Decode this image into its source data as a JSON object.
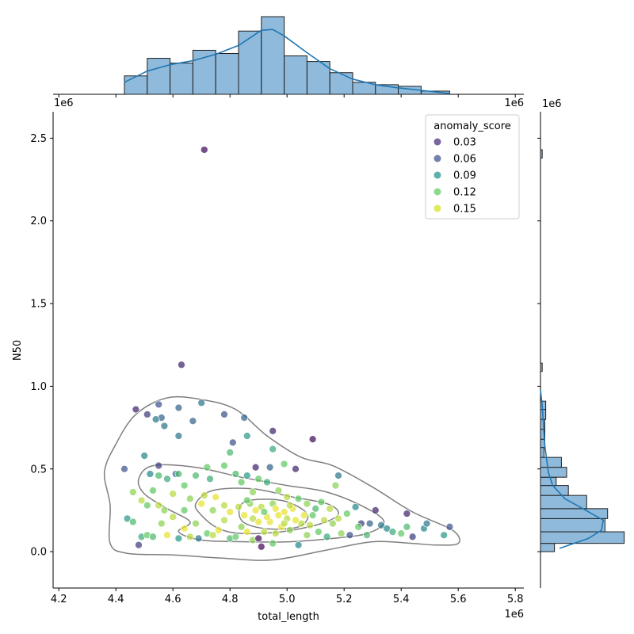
{
  "chart_data": {
    "type": "scatter",
    "xlabel": "total_length",
    "ylabel": "N50",
    "x_offset_label": "1e6",
    "y_offset_label": "1e6",
    "top_hist_left_label": "1e6",
    "top_hist_right_label": "1e6",
    "right_hist_top_label": "1e6",
    "xlim": [
      4.18,
      5.83
    ],
    "ylim": [
      -0.22,
      2.66
    ],
    "x_ticks": [
      4.2,
      4.4,
      4.6,
      4.8,
      5.0,
      5.2,
      5.4,
      5.6,
      5.8
    ],
    "x_tick_labels": [
      "4.2",
      "4.4",
      "4.6",
      "4.8",
      "5.0",
      "5.2",
      "5.4",
      "5.6",
      "5.8"
    ],
    "y_ticks": [
      0.0,
      0.5,
      1.0,
      1.5,
      2.0,
      2.5
    ],
    "y_tick_labels": [
      "0.0",
      "0.5",
      "1.0",
      "1.5",
      "2.0",
      "2.5"
    ],
    "grid": false,
    "legend": {
      "title": "anomaly_score",
      "placement": "top-right",
      "entries": [
        {
          "label": "0.03",
          "color": "#472d7b"
        },
        {
          "label": "0.06",
          "color": "#3b528b"
        },
        {
          "label": "0.09",
          "color": "#21918c"
        },
        {
          "label": "0.12",
          "color": "#5ec962"
        },
        {
          "label": "0.15",
          "color": "#d5e21a"
        }
      ]
    },
    "colors": {
      "hist_fill": "#8fbadb",
      "hist_edge": "#1f1f1f",
      "kde_line": "#1f77b4",
      "contour": "#7f7f7f"
    },
    "points": [
      [
        4.71,
        2.43,
        0.02
      ],
      [
        4.63,
        1.13,
        0.03
      ],
      [
        4.47,
        0.86,
        0.03
      ],
      [
        4.51,
        0.83,
        0.04
      ],
      [
        4.55,
        0.89,
        0.05
      ],
      [
        4.56,
        0.81,
        0.06
      ],
      [
        4.54,
        0.8,
        0.07
      ],
      [
        4.57,
        0.76,
        0.07
      ],
      [
        4.62,
        0.87,
        0.06
      ],
      [
        4.7,
        0.9,
        0.07
      ],
      [
        4.67,
        0.79,
        0.06
      ],
      [
        4.78,
        0.83,
        0.05
      ],
      [
        4.85,
        0.81,
        0.06
      ],
      [
        4.62,
        0.7,
        0.07
      ],
      [
        4.86,
        0.7,
        0.09
      ],
      [
        4.95,
        0.73,
        0.03
      ],
      [
        5.09,
        0.68,
        0.02
      ],
      [
        4.81,
        0.66,
        0.05
      ],
      [
        4.95,
        0.62,
        0.1
      ],
      [
        4.8,
        0.6,
        0.11
      ],
      [
        4.5,
        0.58,
        0.08
      ],
      [
        4.43,
        0.5,
        0.05
      ],
      [
        4.55,
        0.52,
        0.04
      ],
      [
        4.61,
        0.47,
        0.06
      ],
      [
        4.72,
        0.51,
        0.12
      ],
      [
        4.78,
        0.52,
        0.12
      ],
      [
        4.89,
        0.51,
        0.03
      ],
      [
        4.94,
        0.51,
        0.06
      ],
      [
        5.03,
        0.5,
        0.03
      ],
      [
        4.99,
        0.53,
        0.12
      ],
      [
        5.18,
        0.46,
        0.07
      ],
      [
        5.17,
        0.4,
        0.13
      ],
      [
        4.46,
        0.36,
        0.13
      ],
      [
        4.49,
        0.31,
        0.14
      ],
      [
        4.51,
        0.28,
        0.12
      ],
      [
        4.55,
        0.28,
        0.14
      ],
      [
        4.58,
        0.44,
        0.1
      ],
      [
        4.62,
        0.47,
        0.11
      ],
      [
        4.64,
        0.4,
        0.12
      ],
      [
        4.68,
        0.46,
        0.11
      ],
      [
        4.71,
        0.34,
        0.14
      ],
      [
        4.73,
        0.44,
        0.1
      ],
      [
        4.75,
        0.33,
        0.15
      ],
      [
        4.78,
        0.28,
        0.14
      ],
      [
        4.82,
        0.47,
        0.11
      ],
      [
        4.84,
        0.42,
        0.12
      ],
      [
        4.86,
        0.46,
        0.09
      ],
      [
        4.88,
        0.36,
        0.13
      ],
      [
        4.9,
        0.44,
        0.12
      ],
      [
        4.93,
        0.42,
        0.1
      ],
      [
        4.97,
        0.37,
        0.13
      ],
      [
        5.0,
        0.33,
        0.14
      ],
      [
        5.04,
        0.32,
        0.12
      ],
      [
        5.07,
        0.29,
        0.13
      ],
      [
        5.1,
        0.26,
        0.11
      ],
      [
        5.12,
        0.3,
        0.12
      ],
      [
        5.15,
        0.26,
        0.14
      ],
      [
        5.18,
        0.2,
        0.14
      ],
      [
        5.21,
        0.23,
        0.12
      ],
      [
        5.24,
        0.27,
        0.08
      ],
      [
        5.26,
        0.17,
        0.04
      ],
      [
        5.29,
        0.17,
        0.06
      ],
      [
        5.31,
        0.25,
        0.03
      ],
      [
        5.33,
        0.16,
        0.07
      ],
      [
        5.35,
        0.14,
        0.08
      ],
      [
        5.37,
        0.12,
        0.1
      ],
      [
        5.4,
        0.11,
        0.12
      ],
      [
        5.42,
        0.15,
        0.11
      ],
      [
        5.42,
        0.23,
        0.03
      ],
      [
        5.44,
        0.09,
        0.04
      ],
      [
        5.48,
        0.14,
        0.08
      ],
      [
        5.49,
        0.17,
        0.07
      ],
      [
        5.55,
        0.1,
        0.09
      ],
      [
        5.57,
        0.15,
        0.05
      ],
      [
        4.44,
        0.2,
        0.09
      ],
      [
        4.46,
        0.18,
        0.11
      ],
      [
        4.48,
        0.04,
        0.04
      ],
      [
        4.49,
        0.09,
        0.1
      ],
      [
        4.51,
        0.1,
        0.12
      ],
      [
        4.53,
        0.09,
        0.11
      ],
      [
        4.56,
        0.17,
        0.13
      ],
      [
        4.58,
        0.1,
        0.15
      ],
      [
        4.6,
        0.21,
        0.14
      ],
      [
        4.62,
        0.08,
        0.09
      ],
      [
        4.64,
        0.14,
        0.15
      ],
      [
        4.66,
        0.09,
        0.14
      ],
      [
        4.68,
        0.17,
        0.13
      ],
      [
        4.69,
        0.08,
        0.07
      ],
      [
        4.72,
        0.11,
        0.12
      ],
      [
        4.74,
        0.1,
        0.14
      ],
      [
        4.76,
        0.13,
        0.15
      ],
      [
        4.78,
        0.19,
        0.14
      ],
      [
        4.8,
        0.08,
        0.11
      ],
      [
        4.82,
        0.09,
        0.12
      ],
      [
        4.84,
        0.15,
        0.13
      ],
      [
        4.86,
        0.12,
        0.15
      ],
      [
        4.88,
        0.07,
        0.13
      ],
      [
        4.9,
        0.08,
        0.02
      ],
      [
        4.91,
        0.03,
        0.02
      ],
      [
        4.92,
        0.12,
        0.14
      ],
      [
        4.94,
        0.18,
        0.15
      ],
      [
        4.95,
        0.05,
        0.12
      ],
      [
        4.96,
        0.11,
        0.14
      ],
      [
        4.98,
        0.15,
        0.15
      ],
      [
        4.99,
        0.24,
        0.15
      ],
      [
        5.0,
        0.2,
        0.14
      ],
      [
        5.01,
        0.13,
        0.13
      ],
      [
        5.02,
        0.26,
        0.15
      ],
      [
        5.04,
        0.04,
        0.08
      ],
      [
        5.05,
        0.17,
        0.14
      ],
      [
        5.07,
        0.1,
        0.13
      ],
      [
        5.09,
        0.22,
        0.12
      ],
      [
        5.11,
        0.12,
        0.12
      ],
      [
        5.13,
        0.19,
        0.14
      ],
      [
        5.14,
        0.09,
        0.1
      ],
      [
        5.16,
        0.17,
        0.13
      ],
      [
        5.19,
        0.11,
        0.13
      ],
      [
        5.22,
        0.1,
        0.05
      ],
      [
        5.25,
        0.15,
        0.12
      ],
      [
        5.28,
        0.1,
        0.11
      ],
      [
        4.8,
        0.24,
        0.15
      ],
      [
        4.83,
        0.27,
        0.14
      ],
      [
        4.85,
        0.22,
        0.15
      ],
      [
        4.87,
        0.29,
        0.13
      ],
      [
        4.89,
        0.25,
        0.15
      ],
      [
        4.91,
        0.27,
        0.14
      ],
      [
        4.93,
        0.21,
        0.15
      ],
      [
        4.95,
        0.29,
        0.13
      ],
      [
        4.97,
        0.22,
        0.15
      ],
      [
        4.99,
        0.17,
        0.14
      ],
      [
        4.9,
        0.18,
        0.15
      ],
      [
        4.92,
        0.24,
        0.12
      ],
      [
        4.96,
        0.26,
        0.15
      ],
      [
        4.88,
        0.2,
        0.14
      ],
      [
        4.86,
        0.31,
        0.12
      ],
      [
        4.74,
        0.25,
        0.13
      ],
      [
        4.7,
        0.29,
        0.15
      ],
      [
        4.66,
        0.32,
        0.13
      ],
      [
        4.64,
        0.25,
        0.12
      ],
      [
        4.6,
        0.35,
        0.14
      ],
      [
        4.57,
        0.25,
        0.13
      ],
      [
        4.53,
        0.37,
        0.12
      ],
      [
        4.52,
        0.47,
        0.08
      ],
      [
        4.55,
        0.46,
        0.11
      ],
      [
        5.06,
        0.22,
        0.15
      ],
      [
        5.08,
        0.16,
        0.14
      ],
      [
        5.03,
        0.19,
        0.15
      ],
      [
        5.01,
        0.28,
        0.14
      ]
    ],
    "top_hist": {
      "bins": [
        4.43,
        4.51,
        4.59,
        4.67,
        4.75,
        4.83,
        4.91,
        4.99,
        5.07,
        5.15,
        5.23,
        5.31,
        5.39,
        5.47,
        5.57
      ],
      "heights": [
        0.23,
        0.45,
        0.39,
        0.55,
        0.51,
        0.79,
        0.97,
        0.48,
        0.41,
        0.27,
        0.15,
        0.12,
        0.1,
        0.04
      ],
      "kde": [
        [
          4.43,
          0.15
        ],
        [
          4.51,
          0.29
        ],
        [
          4.59,
          0.37
        ],
        [
          4.67,
          0.42
        ],
        [
          4.75,
          0.5
        ],
        [
          4.83,
          0.61
        ],
        [
          4.91,
          0.8
        ],
        [
          4.95,
          0.81
        ],
        [
          4.99,
          0.73
        ],
        [
          5.07,
          0.52
        ],
        [
          5.15,
          0.32
        ],
        [
          5.23,
          0.19
        ],
        [
          5.31,
          0.12
        ],
        [
          5.39,
          0.08
        ],
        [
          5.47,
          0.05
        ],
        [
          5.57,
          0.01
        ]
      ]
    },
    "right_hist": {
      "bins": [
        0.0,
        0.05,
        0.12,
        0.2,
        0.26,
        0.34,
        0.4,
        0.45,
        0.51,
        0.57,
        0.63,
        0.68,
        0.74,
        0.8,
        0.86,
        0.91
      ],
      "lengths": [
        0.16,
        0.96,
        0.74,
        0.77,
        0.53,
        0.32,
        0.18,
        0.3,
        0.24,
        0.04,
        0.05,
        0.05,
        0.05,
        0.06,
        0.06
      ],
      "outlier_bins": [
        [
          1.09,
          1.14,
          0.02
        ],
        [
          2.38,
          2.43,
          0.02
        ]
      ],
      "kde": [
        [
          0.02,
          0.22
        ],
        [
          0.08,
          0.55
        ],
        [
          0.13,
          0.7
        ],
        [
          0.19,
          0.72
        ],
        [
          0.25,
          0.52
        ],
        [
          0.32,
          0.28
        ],
        [
          0.4,
          0.14
        ],
        [
          0.48,
          0.09
        ],
        [
          0.56,
          0.07
        ],
        [
          0.64,
          0.05
        ],
        [
          0.72,
          0.04
        ],
        [
          0.8,
          0.03
        ],
        [
          0.88,
          0.02
        ],
        [
          0.98,
          0.0
        ]
      ]
    },
    "contours": [
      [
        [
          4.36,
          0.48
        ],
        [
          4.4,
          0.65
        ],
        [
          4.47,
          0.83
        ],
        [
          4.58,
          0.93
        ],
        [
          4.7,
          0.92
        ],
        [
          4.82,
          0.86
        ],
        [
          4.93,
          0.7
        ],
        [
          5.05,
          0.57
        ],
        [
          5.16,
          0.52
        ],
        [
          5.3,
          0.39
        ],
        [
          5.44,
          0.24
        ],
        [
          5.58,
          0.13
        ],
        [
          5.6,
          0.05
        ],
        [
          5.52,
          0.04
        ],
        [
          5.44,
          0.05
        ],
        [
          5.3,
          0.06
        ],
        [
          5.14,
          0.01
        ],
        [
          4.95,
          -0.05
        ],
        [
          4.78,
          -0.04
        ],
        [
          4.6,
          -0.02
        ],
        [
          4.44,
          -0.01
        ],
        [
          4.38,
          0.05
        ],
        [
          4.38,
          0.28
        ],
        [
          4.36,
          0.48
        ]
      ],
      [
        [
          4.53,
          0.52
        ],
        [
          4.68,
          0.51
        ],
        [
          4.84,
          0.45
        ],
        [
          5.0,
          0.4
        ],
        [
          5.14,
          0.36
        ],
        [
          5.27,
          0.27
        ],
        [
          5.34,
          0.18
        ],
        [
          5.28,
          0.11
        ],
        [
          5.16,
          0.08
        ],
        [
          5.01,
          0.06
        ],
        [
          4.85,
          0.06
        ],
        [
          4.7,
          0.07
        ],
        [
          4.62,
          0.12
        ],
        [
          4.66,
          0.18
        ],
        [
          4.58,
          0.26
        ],
        [
          4.5,
          0.35
        ],
        [
          4.48,
          0.44
        ],
        [
          4.53,
          0.52
        ]
      ],
      [
        [
          4.74,
          0.37
        ],
        [
          4.88,
          0.38
        ],
        [
          5.02,
          0.33
        ],
        [
          5.14,
          0.29
        ],
        [
          5.18,
          0.23
        ],
        [
          5.12,
          0.17
        ],
        [
          4.98,
          0.12
        ],
        [
          4.84,
          0.11
        ],
        [
          4.76,
          0.14
        ],
        [
          4.7,
          0.22
        ],
        [
          4.68,
          0.29
        ],
        [
          4.74,
          0.37
        ]
      ],
      [
        [
          4.85,
          0.3
        ],
        [
          4.98,
          0.31
        ],
        [
          5.07,
          0.23
        ],
        [
          5.04,
          0.15
        ],
        [
          4.92,
          0.14
        ],
        [
          4.84,
          0.19
        ],
        [
          4.85,
          0.3
        ]
      ]
    ]
  }
}
